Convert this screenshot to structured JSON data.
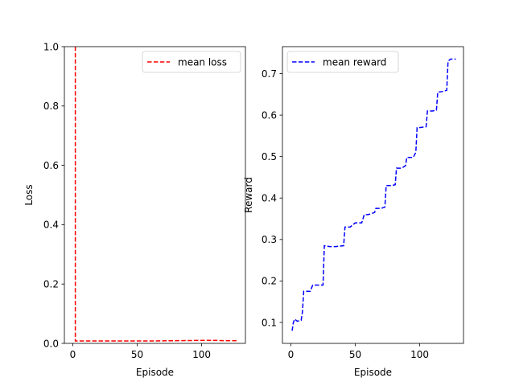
{
  "chart_data": [
    {
      "type": "line",
      "title": "",
      "xlabel": "Episode",
      "ylabel": "Loss",
      "xlim": [
        -6.5,
        134
      ],
      "ylim": [
        0,
        1.0
      ],
      "xticks": [
        0,
        50,
        100
      ],
      "xtick_labels": [
        "0",
        "50",
        "100"
      ],
      "yticks": [
        0,
        0.2,
        0.4,
        0.6,
        0.8,
        1.0
      ],
      "ytick_labels": [
        "0.0",
        "0.2",
        "0.4",
        "0.6",
        "0.8",
        "1.0"
      ],
      "grid": false,
      "legend_position": "top-right",
      "series": [
        {
          "name": "mean loss",
          "color": "#ff0000",
          "linestyle": "dashed",
          "x": [
            2,
            2,
            3,
            20,
            40,
            60,
            80,
            100,
            110,
            120,
            128
          ],
          "y": [
            1.0,
            0.008,
            0.008,
            0.008,
            0.008,
            0.008,
            0.009,
            0.01,
            0.01,
            0.009,
            0.009
          ]
        }
      ]
    },
    {
      "type": "line",
      "title": "",
      "xlabel": "Episode",
      "ylabel": "Reward",
      "xlim": [
        -6.5,
        134
      ],
      "ylim": [
        0.0495,
        0.765
      ],
      "xticks": [
        0,
        50,
        100
      ],
      "xtick_labels": [
        "0",
        "50",
        "100"
      ],
      "yticks": [
        0.1,
        0.2,
        0.3,
        0.4,
        0.5,
        0.6,
        0.7
      ],
      "ytick_labels": [
        "0.1",
        "0.2",
        "0.3",
        "0.4",
        "0.5",
        "0.6",
        "0.7"
      ],
      "grid": false,
      "legend_position": "top-left",
      "series": [
        {
          "name": "mean reward",
          "color": "#0000ff",
          "linestyle": "dashed",
          "x": [
            1,
            2,
            3,
            5,
            8,
            9,
            10,
            15,
            17,
            25,
            26,
            30,
            35,
            41,
            42,
            46,
            50,
            55,
            57,
            60,
            65,
            66,
            70,
            73,
            74,
            78,
            81,
            82,
            86,
            89,
            90,
            95,
            97,
            98,
            100,
            105,
            106,
            110,
            113,
            114,
            118,
            121,
            122,
            124,
            128
          ],
          "y": [
            0.08,
            0.1,
            0.108,
            0.103,
            0.105,
            0.125,
            0.175,
            0.175,
            0.19,
            0.19,
            0.285,
            0.283,
            0.283,
            0.285,
            0.33,
            0.33,
            0.34,
            0.34,
            0.36,
            0.36,
            0.365,
            0.375,
            0.375,
            0.378,
            0.43,
            0.43,
            0.432,
            0.472,
            0.472,
            0.478,
            0.498,
            0.498,
            0.51,
            0.57,
            0.57,
            0.572,
            0.61,
            0.61,
            0.612,
            0.655,
            0.657,
            0.66,
            0.73,
            0.735,
            0.735
          ]
        }
      ]
    }
  ]
}
